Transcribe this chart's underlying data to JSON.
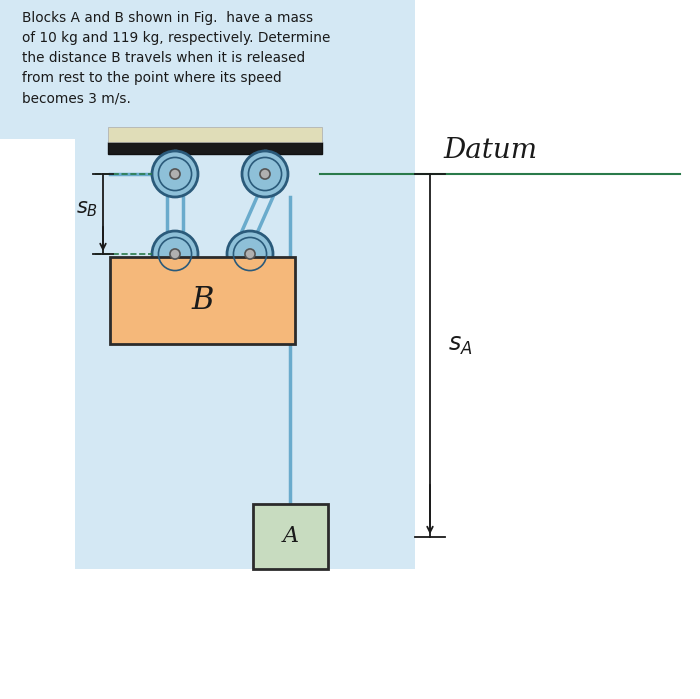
{
  "title_text": "Blocks A and B shown in Fig.  have a mass\nof 10 kg and 119 kg, respectively. Determine\nthe distance B travels when it is released\nfrom rest to the point where its speed\nbecomes 3 m/s.",
  "bg_color_blue": "#d4e8f4",
  "bg_color_white": "#ffffff",
  "block_B_color": "#f5b87a",
  "block_B_border": "#2b2b2b",
  "block_A_color": "#c8dcc0",
  "block_A_border": "#2b2b2b",
  "pulley_color": "#8ec0d8",
  "pulley_mid": "#6aabcc",
  "pulley_dark": "#2a5a7a",
  "ceiling_top_color": "#e0ddb8",
  "ceiling_bot_color": "#1a1a1a",
  "rope_color": "#6aabcc",
  "datum_color": "#2a7a4a",
  "arrow_color": "#1a1a1a",
  "label_datum": "Datum",
  "label_B": "B",
  "label_A": "A"
}
